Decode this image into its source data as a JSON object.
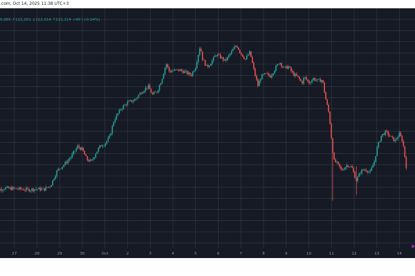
{
  "header": {
    "title": ".com, Oct 14, 2025 11:38 UTC+3",
    "ohlc_text": "0,065  ↑112,201  ↓112,014  ↑112,114  +49 (+0.04%)"
  },
  "chart_data": {
    "type": "candlestick",
    "x_tick_labels": [
      "27",
      "28",
      "29",
      "30",
      "Oct",
      "2",
      "3",
      "4",
      "5",
      "6",
      "7",
      "8",
      "9",
      "10",
      "11",
      "12",
      "13",
      "14"
    ],
    "colors": {
      "background": "#161a25",
      "grid": "#4a4f5e",
      "up": "#26a69a",
      "down": "#ef5350",
      "tick_text": "#9598a1"
    },
    "ylim": [
      0,
      100
    ],
    "close_path": [
      [
        0.0,
        17.5
      ],
      [
        0.3,
        17.8
      ],
      [
        0.6,
        18.6
      ],
      [
        1.0,
        18.3
      ],
      [
        1.3,
        18.1
      ],
      [
        1.6,
        17.7
      ],
      [
        2.0,
        18.2
      ],
      [
        2.3,
        17.9
      ],
      [
        2.6,
        20.0
      ],
      [
        2.9,
        28.0
      ],
      [
        3.2,
        31.0
      ],
      [
        3.5,
        35.0
      ],
      [
        3.8,
        40.5
      ],
      [
        4.0,
        38.8
      ],
      [
        4.2,
        33.6
      ],
      [
        4.4,
        32.5
      ],
      [
        4.6,
        37.2
      ],
      [
        4.8,
        40.8
      ],
      [
        5.0,
        42.0
      ],
      [
        5.2,
        45.3
      ],
      [
        5.4,
        54.3
      ],
      [
        5.7,
        60.3
      ],
      [
        6.0,
        63.6
      ],
      [
        6.3,
        64.8
      ],
      [
        6.6,
        69.0
      ],
      [
        6.9,
        72.1
      ],
      [
        7.1,
        67.6
      ],
      [
        7.3,
        69.4
      ],
      [
        7.5,
        75.4
      ],
      [
        7.7,
        84.0
      ],
      [
        7.85,
        79.7
      ],
      [
        8.0,
        80.3
      ],
      [
        8.3,
        80.6
      ],
      [
        8.6,
        79.2
      ],
      [
        8.8,
        77.9
      ],
      [
        9.0,
        82.4
      ],
      [
        9.2,
        93.4
      ],
      [
        9.3,
        86.7
      ],
      [
        9.5,
        82.1
      ],
      [
        9.7,
        84.8
      ],
      [
        9.9,
        88.8
      ],
      [
        10.1,
        87.4
      ],
      [
        10.3,
        85.3
      ],
      [
        10.6,
        90.3
      ],
      [
        10.8,
        93.8
      ],
      [
        11.0,
        89.3
      ],
      [
        11.2,
        86.3
      ],
      [
        11.4,
        90.0
      ],
      [
        11.6,
        79.1
      ],
      [
        11.75,
        72.4
      ],
      [
        11.9,
        77.3
      ],
      [
        12.1,
        78.5
      ],
      [
        12.3,
        77.4
      ],
      [
        12.5,
        81.2
      ],
      [
        12.7,
        85.0
      ],
      [
        12.9,
        81.5
      ],
      [
        13.1,
        82.4
      ],
      [
        13.3,
        78.5
      ],
      [
        13.5,
        77.0
      ],
      [
        13.7,
        73.9
      ],
      [
        13.8,
        77.0
      ],
      [
        14.0,
        73.9
      ],
      [
        14.2,
        76.1
      ],
      [
        14.4,
        74.9
      ],
      [
        14.6,
        75.5
      ],
      [
        14.75,
        65.1
      ],
      [
        14.9,
        57.2
      ],
      [
        15.0,
        44.5
      ],
      [
        15.1,
        33.0
      ],
      [
        15.25,
        31.5
      ],
      [
        15.45,
        27.9
      ],
      [
        15.7,
        30.9
      ],
      [
        15.9,
        29.4
      ],
      [
        16.1,
        22.7
      ],
      [
        16.3,
        27.6
      ],
      [
        16.5,
        28.5
      ],
      [
        16.7,
        26.7
      ],
      [
        16.9,
        32.8
      ],
      [
        17.0,
        39.2
      ],
      [
        17.2,
        46.2
      ],
      [
        17.4,
        48.1
      ],
      [
        17.6,
        45.6
      ],
      [
        17.8,
        43.4
      ],
      [
        18.0,
        47.1
      ],
      [
        18.15,
        42.8
      ],
      [
        18.3,
        30.0
      ]
    ]
  }
}
